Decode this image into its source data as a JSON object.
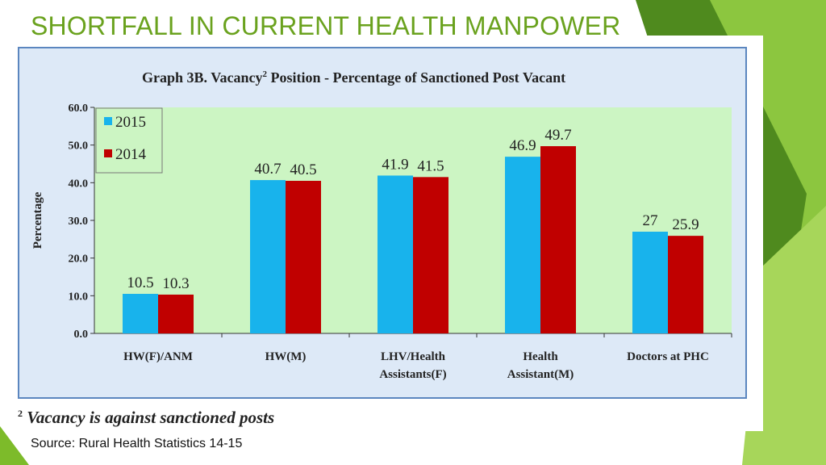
{
  "slide": {
    "title": "SHORTFALL IN CURRENT HEALTH MANPOWER",
    "source": "Source: Rural Health Statistics 14-15",
    "footnote_mark": "2",
    "footnote_text": "Vacancy is against sanctioned posts",
    "colors": {
      "title": "#6aa21e",
      "accent_green": "#7dbb2a",
      "dark_green": "#4f8a1e"
    }
  },
  "chart_data": {
    "type": "bar",
    "title_prefix": "Graph 3B. Vacancy",
    "title_sup": "2",
    "title_suffix": " Position - Percentage of Sanctioned Post Vacant",
    "ylabel": "Percentage",
    "ylim": [
      0,
      60
    ],
    "yticks": [
      "0.0",
      "10.0",
      "20.0",
      "30.0",
      "40.0",
      "50.0",
      "60.0"
    ],
    "categories": [
      [
        "HW(F)/ANM"
      ],
      [
        "HW(M)"
      ],
      [
        "LHV/Health",
        "Assistants(F)"
      ],
      [
        "Health",
        "Assistant(M)"
      ],
      [
        "Doctors at PHC"
      ]
    ],
    "series": [
      {
        "name": "2015",
        "values": [
          10.5,
          40.7,
          41.9,
          46.9,
          27
        ],
        "labels": [
          "10.5",
          "40.7",
          "41.9",
          "46.9",
          "27"
        ],
        "color": "#18b3ec"
      },
      {
        "name": "2014",
        "values": [
          10.3,
          40.5,
          41.5,
          49.7,
          25.9
        ],
        "labels": [
          "10.3",
          "40.5",
          "41.5",
          "49.7",
          "25.9"
        ],
        "color": "#c00000"
      }
    ],
    "legend_position": "top-left",
    "plot_bg": "#ccf5c3",
    "grid": false
  }
}
